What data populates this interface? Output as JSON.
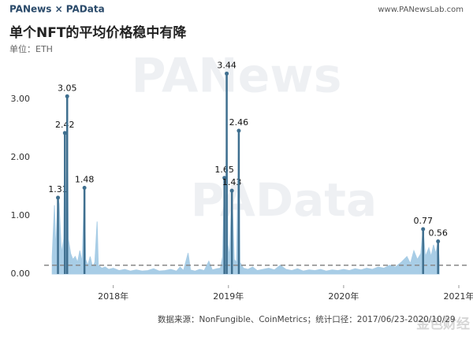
{
  "header": {
    "logo": "PANews × PAData",
    "url": "www.PANewsLab.com"
  },
  "watermarks": [
    "PANews",
    "PAData",
    "金色财经"
  ],
  "chart_data": {
    "type": "area",
    "title": "单个NFT的平均价格稳中有降",
    "subtitle": "单位：ETH",
    "source": "数据来源：NonFungible、CoinMetrics；统计口径：2017/06/23-2020/10/29",
    "x": [
      2017.47,
      2017.49,
      2017.5,
      2017.52,
      2017.53,
      2017.55,
      2017.57,
      2017.58,
      2017.59,
      2017.6,
      2017.61,
      2017.63,
      2017.65,
      2017.67,
      2017.69,
      2017.71,
      2017.73,
      2017.75,
      2017.76,
      2017.78,
      2017.8,
      2017.82,
      2017.84,
      2017.86,
      2017.87,
      2017.9,
      2017.93,
      2017.96,
      2018.0,
      2018.05,
      2018.1,
      2018.15,
      2018.2,
      2018.25,
      2018.3,
      2018.35,
      2018.4,
      2018.45,
      2018.5,
      2018.55,
      2018.58,
      2018.61,
      2018.65,
      2018.67,
      2018.71,
      2018.75,
      2018.79,
      2018.83,
      2018.86,
      2018.9,
      2018.93,
      2018.95,
      2018.965,
      2018.975,
      2018.985,
      2018.995,
      2019.01,
      2019.03,
      2019.05,
      2019.07,
      2019.09,
      2019.1,
      2019.13,
      2019.17,
      2019.21,
      2019.25,
      2019.3,
      2019.35,
      2019.4,
      2019.45,
      2019.5,
      2019.55,
      2019.6,
      2019.65,
      2019.7,
      2019.75,
      2019.8,
      2019.85,
      2019.9,
      2019.95,
      2020.0,
      2020.05,
      2020.1,
      2020.15,
      2020.2,
      2020.25,
      2020.3,
      2020.35,
      2020.4,
      2020.45,
      2020.5,
      2020.55,
      2020.58,
      2020.61,
      2020.64,
      2020.67,
      2020.69,
      2020.71,
      2020.74,
      2020.76,
      2020.78,
      2020.8,
      2020.82,
      2020.83
    ],
    "series": [
      {
        "color": "#a8cde6",
        "values": [
          0.3,
          1.18,
          0.4,
          1.31,
          1.2,
          0.35,
          0.6,
          2.42,
          0.5,
          3.05,
          0.6,
          0.35,
          0.25,
          0.3,
          0.2,
          0.4,
          0.2,
          1.48,
          0.25,
          0.15,
          0.3,
          0.12,
          0.2,
          0.9,
          0.15,
          0.1,
          0.12,
          0.08,
          0.1,
          0.06,
          0.08,
          0.05,
          0.07,
          0.05,
          0.06,
          0.09,
          0.05,
          0.06,
          0.08,
          0.05,
          0.12,
          0.06,
          0.36,
          0.07,
          0.05,
          0.08,
          0.06,
          0.22,
          0.07,
          0.09,
          0.1,
          0.3,
          1.65,
          0.4,
          3.44,
          0.5,
          0.3,
          1.43,
          0.25,
          0.2,
          2.46,
          0.2,
          0.1,
          0.08,
          0.12,
          0.06,
          0.08,
          0.1,
          0.07,
          0.15,
          0.08,
          0.06,
          0.09,
          0.05,
          0.07,
          0.06,
          0.08,
          0.05,
          0.07,
          0.06,
          0.08,
          0.06,
          0.09,
          0.07,
          0.1,
          0.08,
          0.12,
          0.1,
          0.15,
          0.12,
          0.2,
          0.3,
          0.18,
          0.4,
          0.25,
          0.35,
          0.77,
          0.3,
          0.45,
          0.3,
          0.5,
          0.35,
          0.56,
          0.2
        ]
      }
    ],
    "annotations": [
      {
        "x": 2017.52,
        "value": 1.31
      },
      {
        "x": 2017.58,
        "value": 2.42
      },
      {
        "x": 2017.6,
        "value": 3.05
      },
      {
        "x": 2017.75,
        "value": 1.48
      },
      {
        "x": 2018.965,
        "value": 1.65
      },
      {
        "x": 2018.985,
        "value": 3.44
      },
      {
        "x": 2019.03,
        "value": 1.43
      },
      {
        "x": 2019.09,
        "value": 2.46
      },
      {
        "x": 2020.69,
        "value": 0.77
      },
      {
        "x": 2020.82,
        "value": 0.56
      }
    ],
    "annotation_color": "#3f6f8f",
    "reference_line": 0.15,
    "reference_color": "#888888",
    "xlim": [
      2017.4,
      2021.0
    ],
    "xticks": [
      {
        "value": 2018,
        "label": "2018年"
      },
      {
        "value": 2019,
        "label": "2019年"
      },
      {
        "value": 2020,
        "label": "2020年"
      },
      {
        "value": 2021,
        "label": "2021年"
      }
    ],
    "ylim": [
      0,
      3.6
    ],
    "yticks": [
      {
        "value": 0,
        "label": "0.00"
      },
      {
        "value": 1,
        "label": "1.00"
      },
      {
        "value": 2,
        "label": "2.00"
      },
      {
        "value": 3,
        "label": "3.00"
      }
    ],
    "grid": false
  }
}
